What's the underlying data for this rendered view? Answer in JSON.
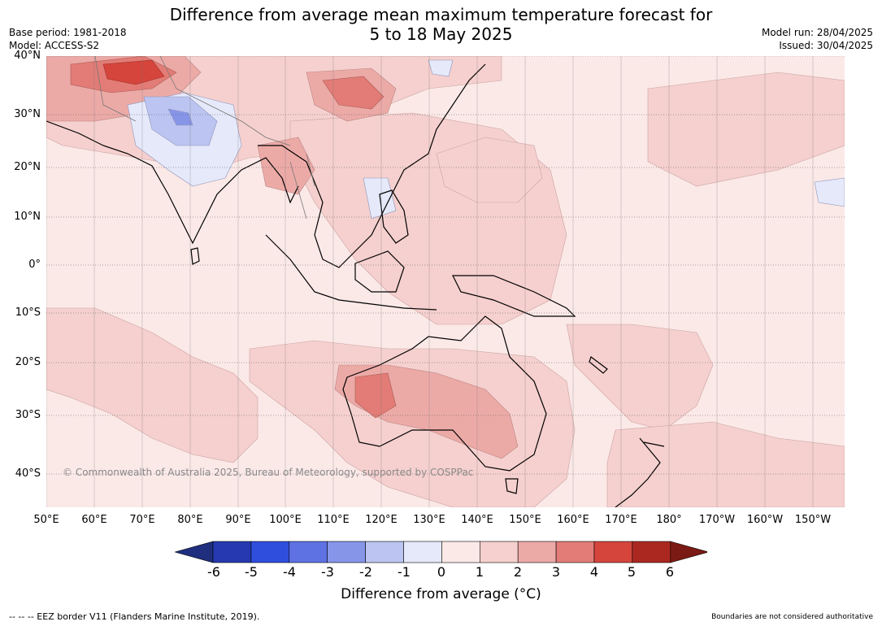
{
  "title_line1": "Difference from average mean maximum temperature forecast for",
  "title_line2": "5 to 18 May 2025",
  "base_period": "Base period: 1981-2018",
  "model": "Model: ACCESS-S2",
  "model_run": "Model run: 28/04/2025",
  "issued": "Issued: 30/04/2025",
  "copyright": "© Commonwealth of Australia 2025, Bureau of Meteorology, supported by COSPPac",
  "lat_labels": [
    "40°N",
    "30°N",
    "20°N",
    "10°N",
    "0°",
    "10°S",
    "20°S",
    "30°S",
    "40°S"
  ],
  "lon_labels": [
    "50°E",
    "60°E",
    "70°E",
    "80°E",
    "90°E",
    "100°E",
    "110°E",
    "120°E",
    "130°E",
    "140°E",
    "150°E",
    "160°E",
    "170°E",
    "180°",
    "170°W",
    "160°W",
    "150°W"
  ],
  "colorbar": {
    "label": "Difference from average (°C)",
    "ticks": [
      "-6",
      "-5",
      "-4",
      "-3",
      "-2",
      "-1",
      "0",
      "1",
      "2",
      "3",
      "4",
      "5",
      "6"
    ],
    "colors": [
      "#1f2f7e",
      "#2639b0",
      "#2f4ede",
      "#5e72e4",
      "#8795e9",
      "#bcc4f1",
      "#e6e9fa",
      "#fbe9e8",
      "#f5d0ce",
      "#ecaaa7",
      "#e37c76",
      "#d5453c",
      "#ab2820",
      "#7b1a15"
    ]
  },
  "footer_left": "--  --  -- EEZ border V11 (Flanders Marine Institute, 2019).",
  "footer_right": "Boundaries are not considered authoritative",
  "land_outline_color": "#000000",
  "ocean_base_color": "#fbe9e8"
}
